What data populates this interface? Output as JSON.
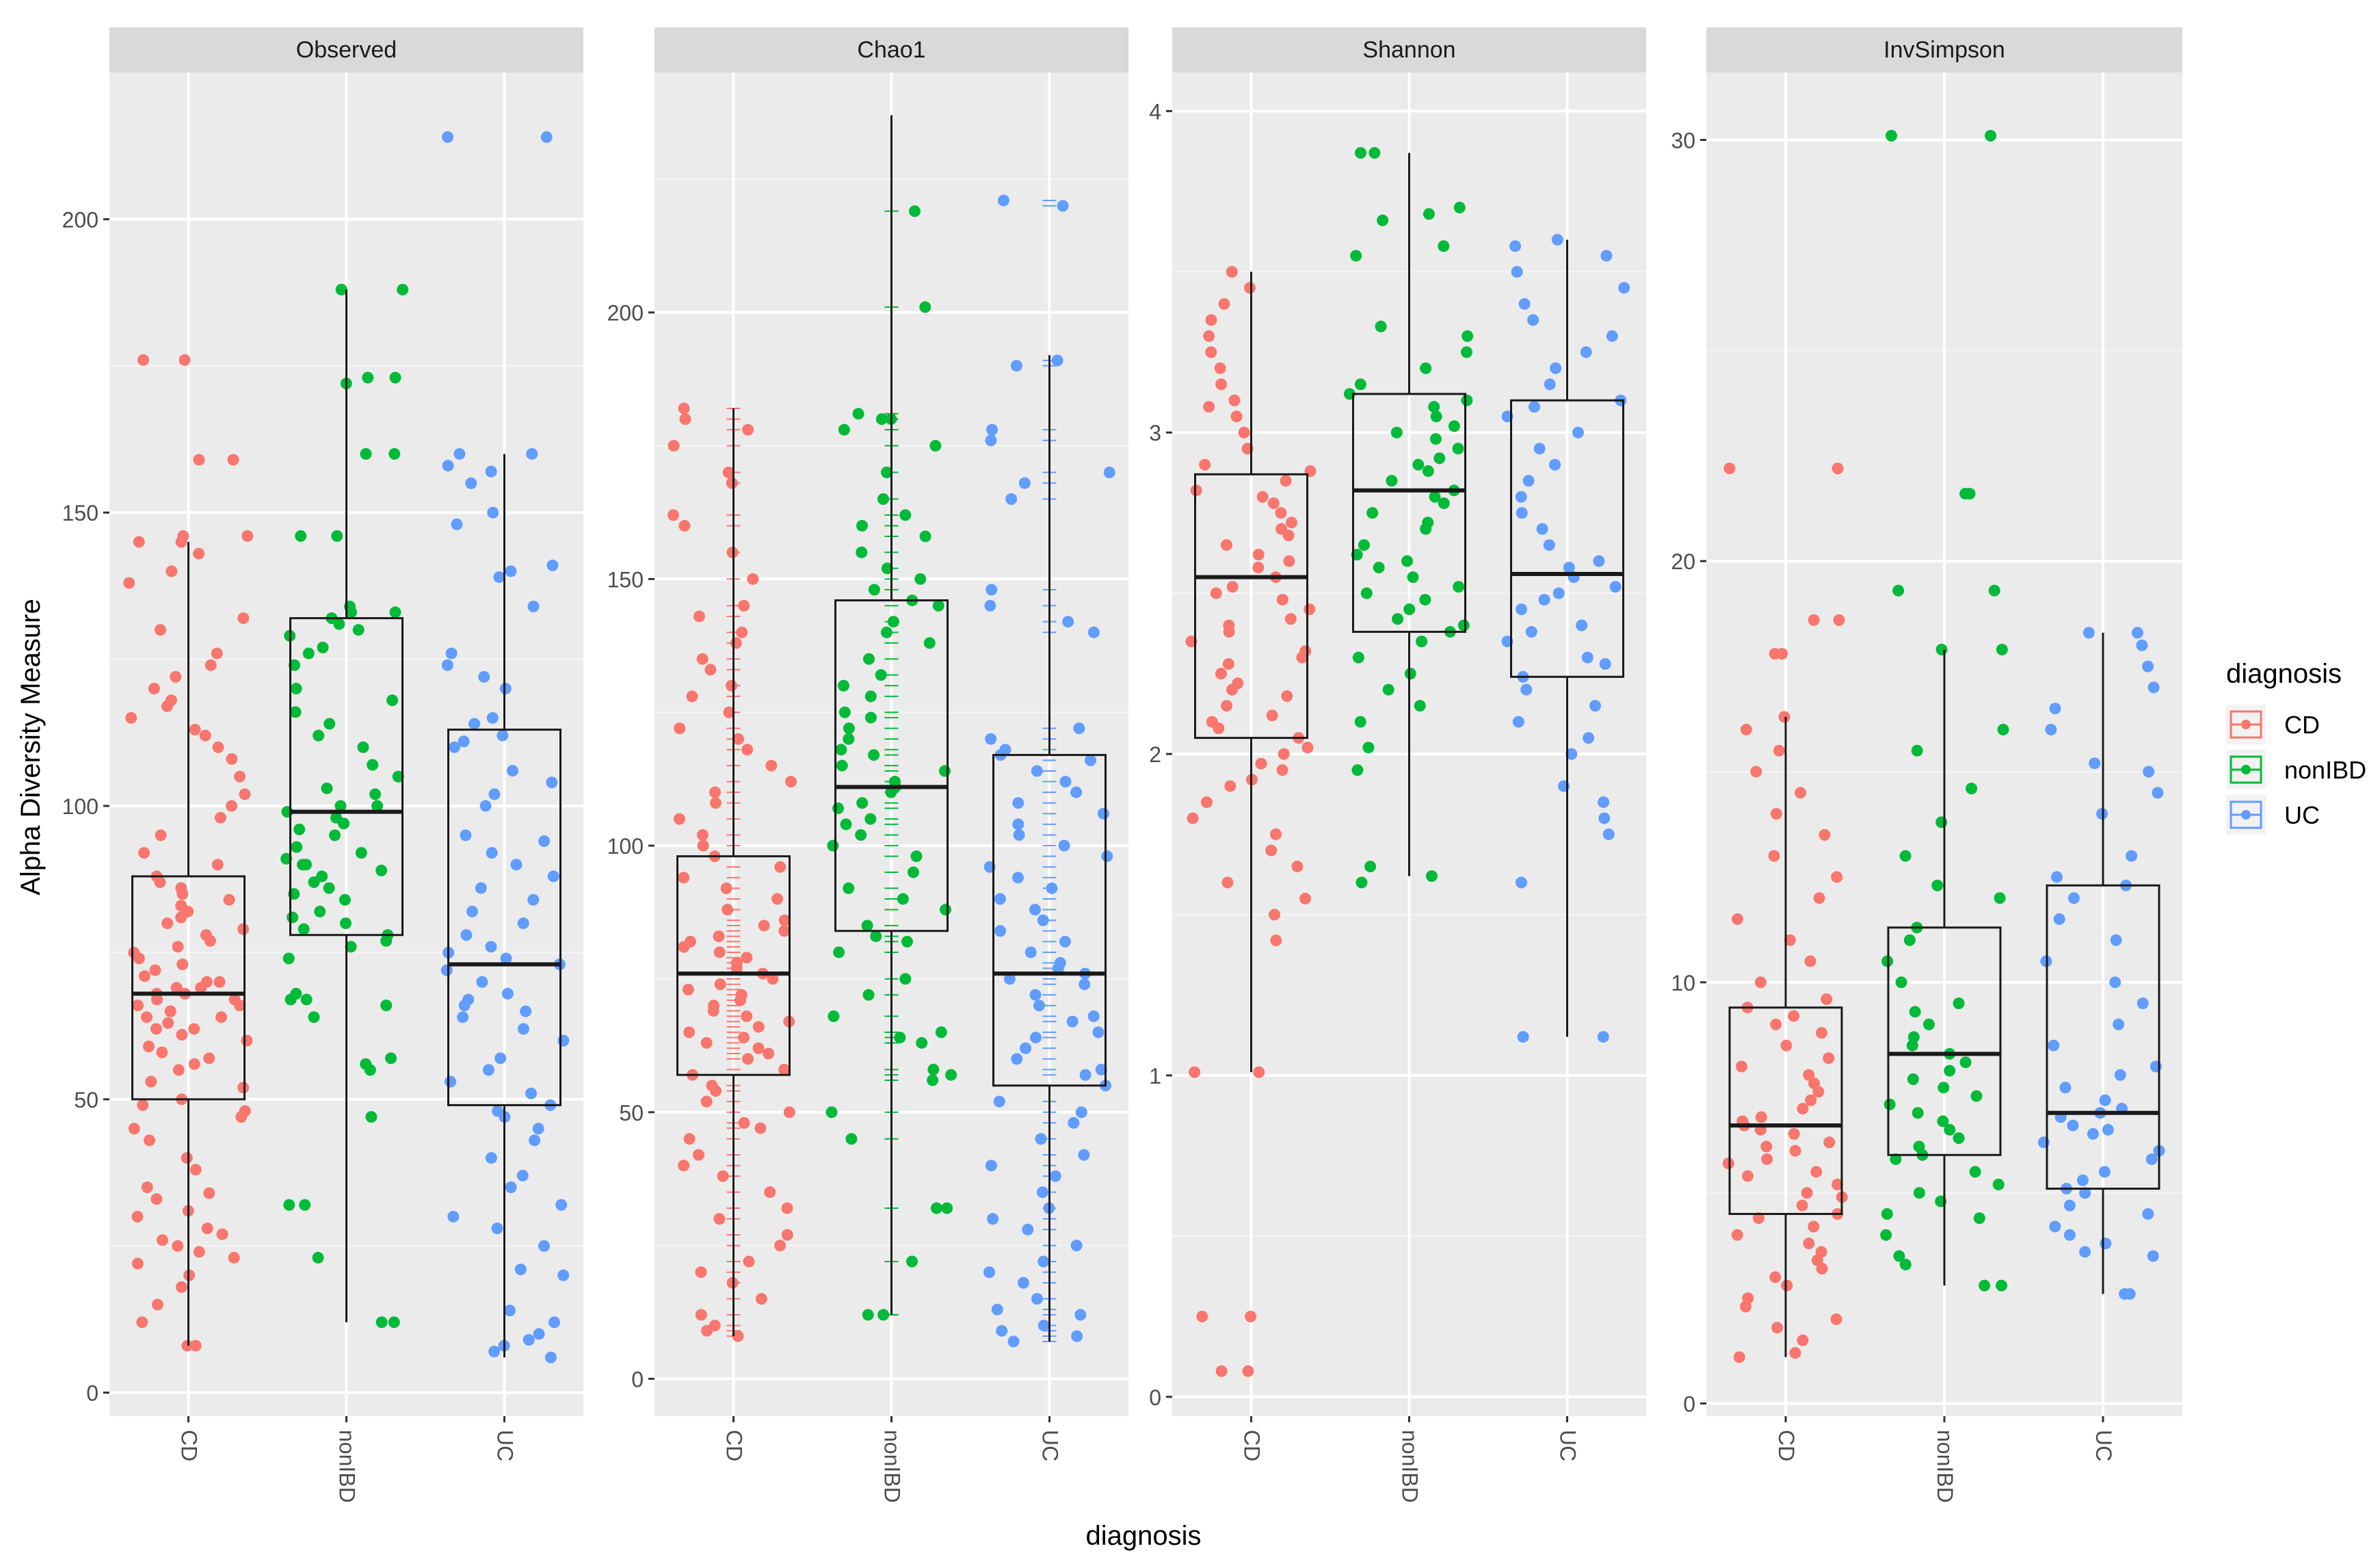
{
  "chart_data": {
    "type": "box",
    "xlabel": "diagnosis",
    "ylabel": "Alpha Diversity Measure",
    "legend": {
      "title": "diagnosis",
      "position": "right",
      "entries": [
        "CD",
        "nonIBD",
        "UC"
      ]
    },
    "categories": [
      "CD",
      "nonIBD",
      "UC"
    ],
    "colors": {
      "CD": "#F8766D",
      "nonIBD": "#00BA38",
      "UC": "#619CFF"
    },
    "panels": [
      {
        "title": "Observed",
        "ylim": [
          -4,
          225
        ],
        "yticks": [
          0,
          50,
          100,
          150,
          200
        ],
        "series": [
          {
            "name": "CD",
            "box": {
              "q1": 50,
              "median": 68,
              "q3": 88,
              "whisker_low": 8,
              "whisker_high": 145
            },
            "points": [
              8,
              8,
              12,
              15,
              18,
              20,
              22,
              23,
              24,
              25,
              26,
              27,
              28,
              30,
              31,
              33,
              34,
              35,
              38,
              40,
              43,
              45,
              47,
              48,
              49,
              50,
              52,
              53,
              55,
              56,
              57,
              58,
              59,
              60,
              61,
              62,
              62,
              63,
              64,
              64,
              65,
              65,
              66,
              66,
              67,
              67,
              68,
              68,
              69,
              69,
              70,
              70,
              71,
              72,
              73,
              74,
              75,
              76,
              77,
              78,
              79,
              80,
              81,
              82,
              83,
              84,
              85,
              86,
              87,
              88,
              90,
              92,
              95,
              98,
              100,
              102,
              105,
              108,
              110,
              112,
              113,
              115,
              117,
              118,
              120,
              122,
              124,
              126,
              130,
              132,
              138,
              140,
              143,
              145,
              145,
              146,
              146,
              159,
              159,
              176,
              176
            ]
          },
          {
            "name": "nonIBD",
            "box": {
              "q1": 78,
              "median": 99,
              "q3": 132,
              "whisker_low": 12,
              "whisker_high": 188
            },
            "points": [
              12,
              12,
              23,
              32,
              32,
              47,
              55,
              56,
              57,
              64,
              66,
              67,
              67,
              68,
              74,
              76,
              77,
              78,
              79,
              80,
              81,
              82,
              84,
              85,
              86,
              87,
              88,
              89,
              90,
              90,
              91,
              92,
              93,
              95,
              96,
              97,
              98,
              99,
              100,
              100,
              102,
              103,
              105,
              107,
              110,
              112,
              114,
              116,
              118,
              120,
              124,
              126,
              127,
              129,
              130,
              131,
              132,
              133,
              133,
              134,
              146,
              146,
              160,
              160,
              172,
              173,
              173,
              188,
              188
            ]
          },
          {
            "name": "UC",
            "box": {
              "q1": 49,
              "median": 73,
              "q3": 113,
              "whisker_low": 6,
              "whisker_high": 160
            },
            "points": [
              6,
              7,
              8,
              9,
              10,
              12,
              14,
              20,
              21,
              25,
              28,
              30,
              32,
              35,
              37,
              40,
              43,
              45,
              47,
              48,
              49,
              51,
              53,
              55,
              57,
              60,
              62,
              64,
              65,
              66,
              67,
              68,
              70,
              72,
              73,
              74,
              75,
              76,
              78,
              80,
              82,
              84,
              86,
              88,
              90,
              92,
              94,
              95,
              100,
              102,
              104,
              106,
              110,
              111,
              112,
              114,
              115,
              120,
              122,
              124,
              126,
              134,
              139,
              140,
              141,
              148,
              150,
              155,
              157,
              158,
              160,
              160,
              214,
              214
            ]
          }
        ]
      },
      {
        "title": "Chao1",
        "ylim": [
          -7,
          245
        ],
        "yticks": [
          0,
          50,
          100,
          150,
          200
        ],
        "series": [
          {
            "name": "CD",
            "box": {
              "q1": 57,
              "median": 76,
              "q3": 98,
              "whisker_low": 8,
              "whisker_high": 182
            },
            "points": [
              8,
              9,
              10,
              12,
              15,
              18,
              20,
              22,
              25,
              27,
              30,
              32,
              35,
              38,
              40,
              42,
              45,
              47,
              48,
              50,
              52,
              54,
              55,
              57,
              58,
              60,
              61,
              62,
              63,
              64,
              65,
              66,
              67,
              68,
              69,
              70,
              71,
              72,
              73,
              74,
              75,
              76,
              77,
              78,
              79,
              80,
              81,
              82,
              83,
              84,
              85,
              86,
              88,
              90,
              92,
              94,
              96,
              98,
              100,
              102,
              105,
              108,
              110,
              112,
              115,
              118,
              120,
              122,
              125,
              128,
              130,
              133,
              135,
              138,
              140,
              143,
              145,
              150,
              155,
              160,
              162,
              168,
              170,
              175,
              178,
              180,
              182
            ]
          },
          {
            "name": "nonIBD",
            "box": {
              "q1": 84,
              "median": 111,
              "q3": 146,
              "whisker_low": 12,
              "whisker_high": 237
            },
            "points": [
              12,
              12,
              22,
              32,
              32,
              45,
              50,
              56,
              57,
              58,
              63,
              64,
              65,
              68,
              72,
              75,
              80,
              82,
              83,
              85,
              88,
              90,
              92,
              95,
              98,
              100,
              102,
              104,
              105,
              107,
              108,
              110,
              111,
              112,
              114,
              115,
              117,
              118,
              120,
              122,
              124,
              125,
              128,
              130,
              132,
              135,
              138,
              140,
              142,
              145,
              146,
              148,
              150,
              152,
              155,
              158,
              160,
              162,
              165,
              170,
              175,
              178,
              180,
              180,
              181,
              201,
              219
            ]
          },
          {
            "name": "UC",
            "box": {
              "q1": 55,
              "median": 76,
              "q3": 117,
              "whisker_low": 7,
              "whisker_high": 192
            },
            "points": [
              7,
              8,
              9,
              10,
              12,
              13,
              15,
              18,
              20,
              22,
              25,
              28,
              30,
              32,
              35,
              38,
              40,
              42,
              45,
              48,
              50,
              52,
              55,
              57,
              58,
              60,
              62,
              64,
              65,
              67,
              68,
              70,
              72,
              74,
              75,
              76,
              77,
              78,
              80,
              82,
              84,
              86,
              88,
              90,
              92,
              94,
              96,
              98,
              100,
              102,
              104,
              106,
              108,
              110,
              112,
              114,
              116,
              117,
              118,
              120,
              122,
              140,
              142,
              145,
              148,
              165,
              168,
              170,
              176,
              178,
              190,
              191,
              220,
              221
            ]
          }
        ]
      },
      {
        "title": "Shannon",
        "ylim": [
          -0.06,
          4.12
        ],
        "yticks": [
          0,
          1,
          2,
          3,
          4
        ],
        "series": [
          {
            "name": "CD",
            "box": {
              "q1": 2.05,
              "median": 2.55,
              "q3": 2.87,
              "whisker_low": 1.01,
              "whisker_high": 3.5
            },
            "points": [
              0.08,
              0.08,
              0.25,
              0.25,
              1.01,
              1.01,
              1.42,
              1.5,
              1.55,
              1.6,
              1.65,
              1.7,
              1.75,
              1.8,
              1.85,
              1.9,
              1.92,
              1.95,
              1.97,
              2.0,
              2.02,
              2.05,
              2.08,
              2.1,
              2.12,
              2.15,
              2.18,
              2.2,
              2.22,
              2.25,
              2.28,
              2.3,
              2.32,
              2.35,
              2.38,
              2.4,
              2.42,
              2.45,
              2.48,
              2.5,
              2.52,
              2.55,
              2.58,
              2.6,
              2.62,
              2.65,
              2.68,
              2.7,
              2.72,
              2.75,
              2.78,
              2.8,
              2.82,
              2.85,
              2.88,
              2.9,
              2.95,
              3.0,
              3.05,
              3.08,
              3.1,
              3.15,
              3.2,
              3.25,
              3.3,
              3.35,
              3.4,
              3.45,
              3.5
            ]
          },
          {
            "name": "nonIBD",
            "box": {
              "q1": 2.38,
              "median": 2.82,
              "q3": 3.12,
              "whisker_low": 1.62,
              "whisker_high": 3.87
            },
            "points": [
              1.6,
              1.62,
              1.65,
              1.95,
              2.02,
              2.1,
              2.15,
              2.2,
              2.25,
              2.3,
              2.35,
              2.38,
              2.4,
              2.42,
              2.45,
              2.48,
              2.5,
              2.52,
              2.55,
              2.58,
              2.6,
              2.62,
              2.65,
              2.7,
              2.72,
              2.75,
              2.78,
              2.8,
              2.82,
              2.85,
              2.88,
              2.9,
              2.92,
              2.95,
              2.98,
              3.0,
              3.02,
              3.05,
              3.08,
              3.1,
              3.12,
              3.15,
              3.2,
              3.25,
              3.3,
              3.33,
              3.55,
              3.58,
              3.66,
              3.68,
              3.7,
              3.87,
              3.87
            ]
          },
          {
            "name": "UC",
            "box": {
              "q1": 2.24,
              "median": 2.56,
              "q3": 3.1,
              "whisker_low": 1.12,
              "whisker_high": 3.6
            },
            "points": [
              1.12,
              1.12,
              1.6,
              1.75,
              1.8,
              1.85,
              1.9,
              2.0,
              2.05,
              2.1,
              2.15,
              2.2,
              2.24,
              2.28,
              2.3,
              2.35,
              2.38,
              2.4,
              2.45,
              2.48,
              2.5,
              2.52,
              2.55,
              2.58,
              2.6,
              2.65,
              2.7,
              2.75,
              2.8,
              2.85,
              2.9,
              2.95,
              3.0,
              3.05,
              3.08,
              3.1,
              3.15,
              3.2,
              3.25,
              3.3,
              3.35,
              3.4,
              3.45,
              3.5,
              3.55,
              3.58,
              3.6
            ]
          }
        ]
      },
      {
        "title": "InvSimpson",
        "ylim": [
          -0.3,
          31.6
        ],
        "yticks": [
          0,
          10,
          20,
          30
        ],
        "series": [
          {
            "name": "CD",
            "box": {
              "q1": 4.5,
              "median": 6.6,
              "q3": 9.4,
              "whisker_low": 1.1,
              "whisker_high": 16.3
            },
            "points": [
              1.1,
              1.2,
              1.5,
              1.8,
              2.0,
              2.3,
              2.5,
              2.8,
              3.0,
              3.2,
              3.4,
              3.6,
              3.8,
              4.0,
              4.2,
              4.4,
              4.5,
              4.7,
              4.9,
              5.0,
              5.2,
              5.4,
              5.5,
              5.7,
              5.8,
              6.0,
              6.1,
              6.2,
              6.4,
              6.5,
              6.6,
              6.7,
              6.8,
              7.0,
              7.2,
              7.4,
              7.6,
              7.8,
              8.0,
              8.2,
              8.5,
              8.8,
              9.0,
              9.2,
              9.4,
              9.6,
              10.0,
              10.5,
              11.0,
              11.5,
              12.0,
              12.5,
              13.0,
              13.5,
              14.0,
              14.5,
              15.0,
              15.5,
              16.0,
              16.3,
              17.8,
              17.8,
              18.6,
              18.6,
              22.2,
              22.2
            ]
          },
          {
            "name": "nonIBD",
            "box": {
              "q1": 5.9,
              "median": 8.3,
              "q3": 11.3,
              "whisker_low": 2.8,
              "whisker_high": 17.9
            },
            "points": [
              2.8,
              2.8,
              3.3,
              3.5,
              4.0,
              4.4,
              4.5,
              4.8,
              5.0,
              5.2,
              5.5,
              5.8,
              5.9,
              6.1,
              6.3,
              6.5,
              6.7,
              6.9,
              7.1,
              7.3,
              7.5,
              7.7,
              7.9,
              8.1,
              8.3,
              8.5,
              8.7,
              9.0,
              9.3,
              9.5,
              10.0,
              10.5,
              11.0,
              11.3,
              12.0,
              12.3,
              13.0,
              13.8,
              14.6,
              15.5,
              16.0,
              17.9,
              17.9,
              19.3,
              19.3,
              21.6,
              21.6,
              30.1,
              30.1
            ]
          },
          {
            "name": "UC",
            "box": {
              "q1": 5.1,
              "median": 6.9,
              "q3": 12.3,
              "whisker_low": 2.6,
              "whisker_high": 18.3
            },
            "points": [
              2.6,
              2.6,
              3.5,
              3.6,
              3.8,
              4.0,
              4.2,
              4.5,
              4.7,
              5.0,
              5.1,
              5.3,
              5.5,
              5.8,
              6.0,
              6.2,
              6.4,
              6.5,
              6.6,
              6.8,
              6.9,
              7.0,
              7.2,
              7.5,
              7.8,
              8.0,
              8.5,
              9.0,
              9.5,
              10.0,
              10.5,
              11.0,
              11.5,
              12.0,
              12.3,
              12.5,
              13.0,
              14.0,
              14.5,
              15.0,
              15.2,
              16.0,
              16.5,
              17.0,
              17.5,
              18.0,
              18.3,
              18.3
            ]
          }
        ]
      }
    ]
  }
}
